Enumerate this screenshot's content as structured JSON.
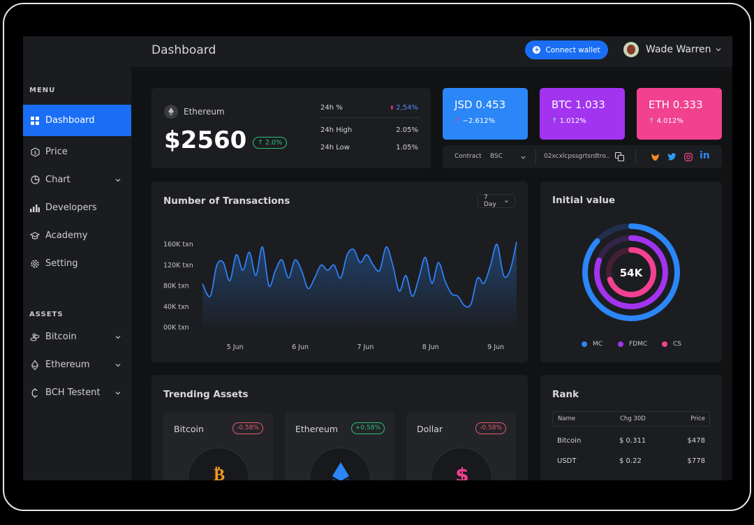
{
  "sidebar": {
    "menu_label": "MENU",
    "assets_label": "ASSETS",
    "items": [
      {
        "label": "Dashboard",
        "icon": "grid-icon"
      },
      {
        "label": "Price",
        "icon": "dollar-icon"
      },
      {
        "label": "Chart",
        "icon": "pie-icon"
      },
      {
        "label": "Developers",
        "icon": "bars-icon"
      },
      {
        "label": "Academy",
        "icon": "graduation-cap-icon"
      },
      {
        "label": "Setting",
        "icon": "gear-icon"
      }
    ],
    "assets": [
      {
        "label": "Bitcoin",
        "icon": "bitcoin-icon"
      },
      {
        "label": "Ethereum",
        "icon": "ethereum-icon"
      },
      {
        "label": "BCH Testent",
        "icon": "bch-icon"
      }
    ]
  },
  "header": {
    "title": "Dashboard",
    "connect_label": "Connect wallet",
    "user_name": "Wade Warren"
  },
  "ethereum_card": {
    "name": "Ethereum",
    "price": "$2560",
    "change": "↑ 2.0%",
    "stats": [
      {
        "label": "24h %",
        "value": "2,54%"
      },
      {
        "label": "24h High",
        "value": "2.05%"
      },
      {
        "label": "24h Low",
        "value": "1.05%"
      }
    ]
  },
  "price_tiles": [
    {
      "title": "JSD 0.453",
      "sub": "−2.612%",
      "color": "#2b86f7"
    },
    {
      "title": "BTC 1.033",
      "sub": "1.012%",
      "color": "#a234f0"
    },
    {
      "title": "ETH 0.333",
      "sub": "4.012%",
      "color": "#f1418f"
    }
  ],
  "contract": {
    "label": "Contract",
    "network": "BSC",
    "address": "02xcxlcpssgrtsrdtro.."
  },
  "transactions": {
    "title": "Number of Transactions",
    "range": "7 Day"
  },
  "chart_data": {
    "type": "area",
    "title": "Number of Transactions",
    "y_tick_labels": [
      "160K txn",
      "120K txn",
      "80K txn",
      "40K txn",
      "00K txn"
    ],
    "x_tick_labels": [
      "5 Jun",
      "6 Jun",
      "7 Jun",
      "8 Jun",
      "9 Jun"
    ],
    "ylim": [
      0,
      160000
    ],
    "x": [
      4.5,
      4.62,
      4.72,
      4.82,
      4.92,
      5.02,
      5.12,
      5.22,
      5.32,
      5.42,
      5.52,
      5.62,
      5.72,
      5.82,
      5.92,
      6.02,
      6.12,
      6.22,
      6.32,
      6.42,
      6.52,
      6.62,
      6.72,
      6.82,
      6.92,
      7.02,
      7.12,
      7.22,
      7.32,
      7.42,
      7.52,
      7.62,
      7.72,
      7.82,
      7.92,
      8.02,
      8.12,
      8.22,
      8.32,
      8.42,
      8.52,
      8.62,
      8.72,
      8.82,
      8.92,
      9.02,
      9.12,
      9.22,
      9.32
    ],
    "y": [
      84000,
      60000,
      120000,
      125000,
      90000,
      140000,
      110000,
      145000,
      100000,
      155000,
      80000,
      110000,
      130000,
      95000,
      130000,
      110000,
      75000,
      95000,
      120000,
      110000,
      120000,
      95000,
      140000,
      150000,
      125000,
      140000,
      120000,
      110000,
      155000,
      120000,
      70000,
      100000,
      60000,
      95000,
      135000,
      85000,
      125000,
      90000,
      65000,
      60000,
      42000,
      45000,
      95000,
      85000,
      120000,
      160000,
      100000,
      110000,
      165000
    ]
  },
  "initial_value": {
    "title": "Initial value",
    "center": "54K",
    "legend": [
      {
        "label": "MC",
        "color": "#2b86f7"
      },
      {
        "label": "FDMC",
        "color": "#a234f0"
      },
      {
        "label": "CS",
        "color": "#f1418f"
      }
    ]
  },
  "trending": {
    "title": "Trending Assets",
    "assets": [
      {
        "name": "Bitcoin",
        "change": "-0.58%",
        "tone": "neg"
      },
      {
        "name": "Ethereum",
        "change": "+0.58%",
        "tone": "pos"
      },
      {
        "name": "Dollar",
        "change": "-0.58%",
        "tone": "neg"
      }
    ]
  },
  "rank": {
    "title": "Rank",
    "headers": [
      "Name",
      "Chg 30D",
      "Price"
    ],
    "rows": [
      {
        "name": "Bitcoin",
        "chg": "$ 0.311",
        "price": "$478"
      },
      {
        "name": "USDT",
        "chg": "$ 0.22",
        "price": "$778"
      }
    ]
  }
}
